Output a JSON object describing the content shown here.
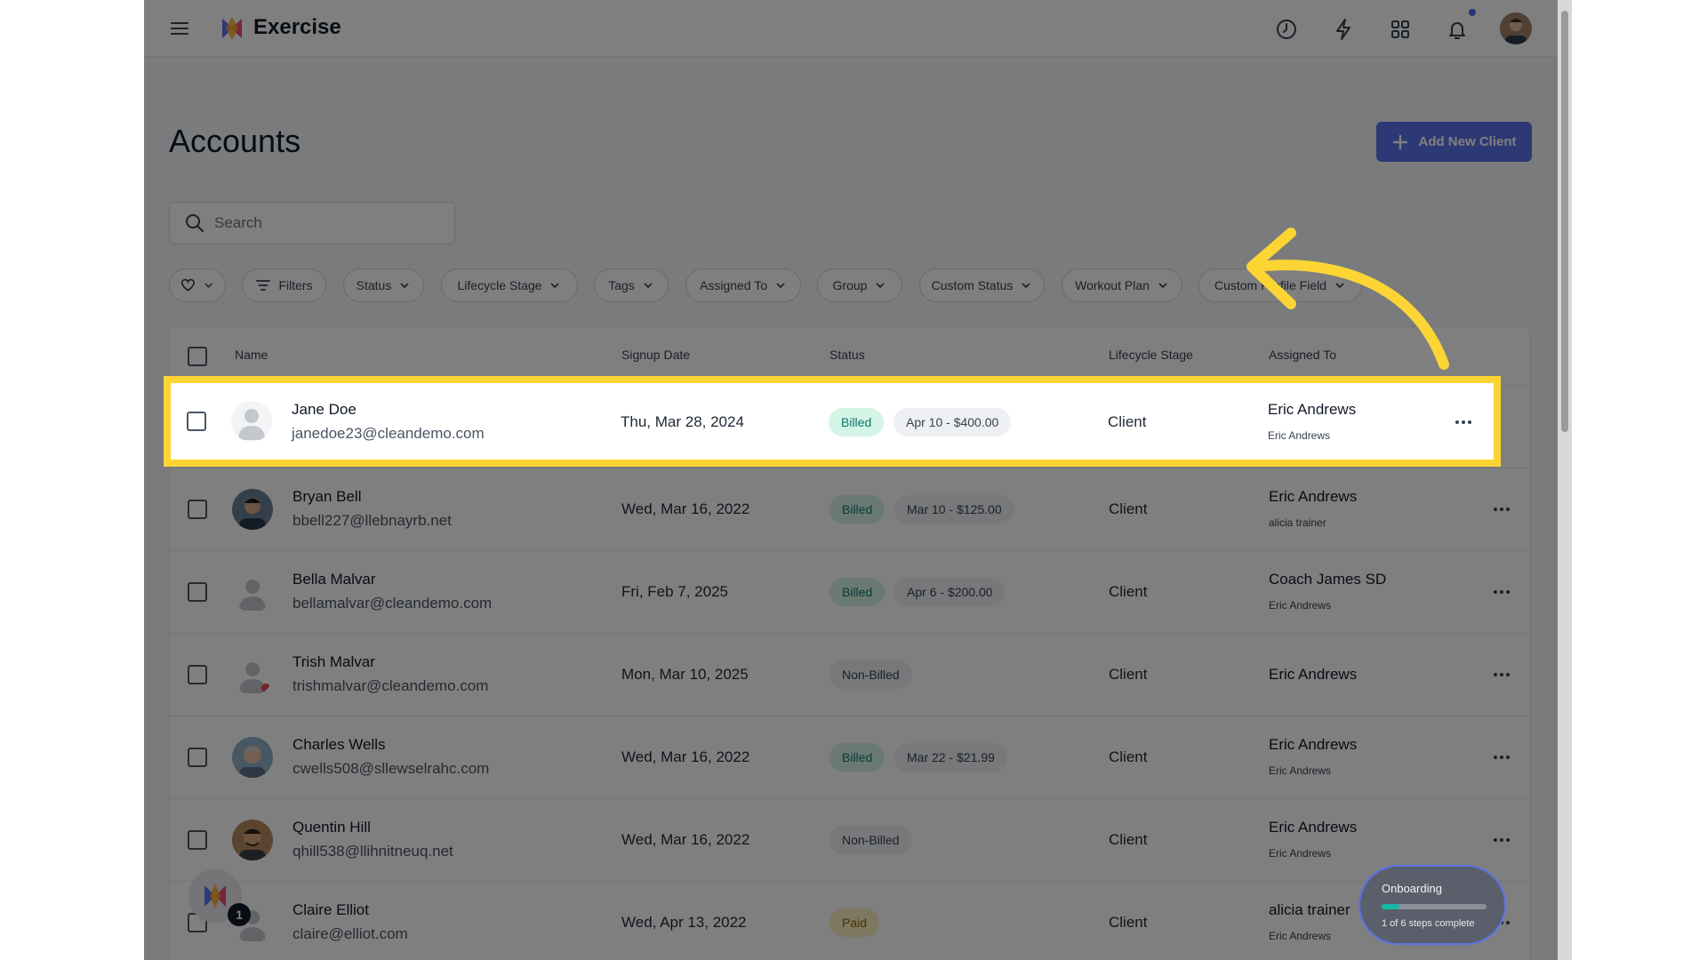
{
  "app": {
    "title": "Exercise"
  },
  "page": {
    "title": "Accounts",
    "add_button": "Add New Client"
  },
  "search": {
    "placeholder": "Search"
  },
  "filters": [
    {
      "label": ""
    },
    {
      "label": "Filters"
    },
    {
      "label": "Status"
    },
    {
      "label": "Lifecycle Stage"
    },
    {
      "label": "Tags"
    },
    {
      "label": "Assigned To"
    },
    {
      "label": "Group"
    },
    {
      "label": "Custom Status"
    },
    {
      "label": "Workout Plan"
    },
    {
      "label": "Custom Profile Field"
    }
  ],
  "table": {
    "headers": {
      "name": "Name",
      "signup": "Signup Date",
      "status": "Status",
      "stage": "Lifecycle Stage",
      "assigned": "Assigned To"
    },
    "rows": [
      {
        "name": "Jane Doe",
        "email": "janedoe23@cleandemo.com",
        "signup": "Thu, Mar 28, 2024",
        "status": "Billed",
        "plan": "Apr 10 - $400.00",
        "stage": "Client",
        "assigned": "Eric Andrews",
        "assigned_sub": "Eric Andrews",
        "avatar": "default-avatar"
      },
      {
        "name": "Bryan Bell",
        "email": "bbell227@llebnayrb.net",
        "signup": "Wed, Mar 16, 2022",
        "status": "Billed",
        "plan": "Mar 10 - $125.00",
        "stage": "Client",
        "assigned": "Eric Andrews",
        "assigned_sub": "alicia trainer",
        "avatar": "photo-avatar"
      },
      {
        "name": "Bella Malvar",
        "email": "bellamalvar@cleandemo.com",
        "signup": "Fri, Feb 7, 2025",
        "status": "Billed",
        "plan": "Apr 6 - $200.00",
        "stage": "Client",
        "assigned": "Coach James SD",
        "assigned_sub": "Eric Andrews",
        "avatar": "default-avatar"
      },
      {
        "name": "Trish Malvar",
        "email": "trishmalvar@cleandemo.com",
        "signup": "Mon, Mar 10, 2025",
        "status": "Non-Billed",
        "plan": "",
        "stage": "Client",
        "assigned": "Eric Andrews",
        "assigned_sub": "",
        "avatar": "default-avatar"
      },
      {
        "name": "Charles Wells",
        "email": "cwells508@sllewselrahc.com",
        "signup": "Wed, Mar 16, 2022",
        "status": "Billed",
        "plan": "Mar 22 - $21.99",
        "stage": "Client",
        "assigned": "Eric Andrews",
        "assigned_sub": "Eric Andrews",
        "avatar": "photo-avatar"
      },
      {
        "name": "Quentin Hill",
        "email": "qhill538@llihnitneuq.net",
        "signup": "Wed, Mar 16, 2022",
        "status": "Non-Billed",
        "plan": "",
        "stage": "Client",
        "assigned": "Eric Andrews",
        "assigned_sub": "Eric Andrews",
        "avatar": "photo-avatar"
      },
      {
        "name": "Claire Elliot",
        "email": "claire@elliot.com",
        "signup": "Wed, Apr 13, 2022",
        "status": "Paid",
        "plan": "",
        "stage": "Client",
        "assigned": "alicia trainer",
        "assigned_sub": "Eric Andrews",
        "avatar": "default-avatar"
      }
    ]
  },
  "help": {
    "count": "1"
  },
  "onboarding": {
    "title": "Onboarding",
    "subtitle": "1 of 6 steps complete",
    "progress": 0.1667
  },
  "colors": {
    "accent": "#5b72e8",
    "highlight": "#fcd535",
    "billed": "#d4f5e6",
    "paid": "#fdf0c2"
  },
  "icons": [
    "menu-icon",
    "clock-icon",
    "lightning-icon",
    "grid-icon",
    "bell-icon",
    "search-icon",
    "heart-icon",
    "filter-icon",
    "chevron-down-icon",
    "plus-icon",
    "more-icon"
  ]
}
